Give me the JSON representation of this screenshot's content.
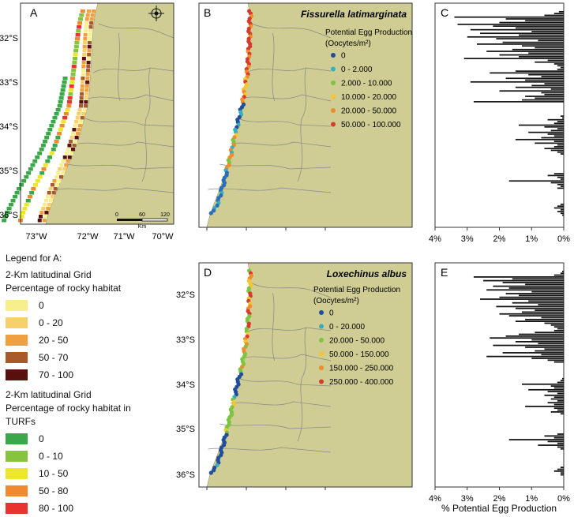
{
  "colors": {
    "land": "#cfcd93",
    "sea": "#ffffff",
    "border": "#888888",
    "bar": "#111111",
    "coast_deep": "#1f4e9a",
    "coast_blue": "#2a6db8",
    "coast_teal": "#35b0c2",
    "coast_green": "#7cc540",
    "coast_yellow": "#f5c533",
    "coast_orange": "#f08c2a",
    "coast_red": "#d63b2b"
  },
  "panelA": {
    "letter": "A",
    "lat_labels": [
      "32°S",
      "33°S",
      "34°S",
      "35°S",
      "36°S"
    ],
    "lon_labels": [
      "73°W",
      "72°W",
      "71°W",
      "70°W"
    ],
    "scale_ticks": [
      "0",
      "60",
      "120"
    ],
    "scale_unit": "Km"
  },
  "panelB": {
    "letter": "B",
    "species": "Fissurella latimarginata",
    "legend_title": "Potential Egg Production",
    "legend_unit": "(Oocytes/m²)",
    "classes": [
      "0",
      "0 - 2.000",
      "2.000 - 10.000",
      "10.000 - 20.000",
      "20.000 - 50.000",
      "50.000 - 100.000"
    ],
    "class_colors": [
      "#1f4e9a",
      "#35b0c2",
      "#7cc540",
      "#f5c533",
      "#f08c2a",
      "#d63b2b"
    ]
  },
  "panelD": {
    "letter": "D",
    "species": "Loxechinus albus",
    "legend_title": "Potential Egg Production",
    "legend_unit": "(Oocytes/m²)",
    "classes": [
      "0",
      "0 - 20.000",
      "20.000 - 50.000",
      "50.000 - 150.000",
      "150.000 - 250.000",
      "250.000 - 400.000"
    ],
    "class_colors": [
      "#1f4e9a",
      "#35b0c2",
      "#7cc540",
      "#f5c533",
      "#f08c2a",
      "#d63b2b"
    ],
    "lat_labels": [
      "32°S",
      "33°S",
      "34°S",
      "35°S",
      "36°S"
    ]
  },
  "panelC": {
    "letter": "C"
  },
  "panelE": {
    "letter": "E"
  },
  "legendA": {
    "title": "Legend for A:",
    "grid1_line1": "2-Km latitudinal Grid",
    "grid1_line2": "Percentage of rocky habitat",
    "grid1_classes": [
      "0",
      "0 - 20",
      "20 - 50",
      "50 - 70",
      "70 - 100"
    ],
    "grid1_colors": [
      "#f7ef8c",
      "#f8cf6a",
      "#f0a03e",
      "#a85a2a",
      "#5a0f0f"
    ],
    "grid2_line1": "2-Km latitudinal Grid",
    "grid2_line2": "Percentage of rocky habitat in",
    "grid2_line3": "TURFs",
    "grid2_classes": [
      "0",
      "0 - 10",
      "10 - 50",
      "50 - 80",
      "80 - 100"
    ],
    "grid2_colors": [
      "#3aa84a",
      "#86c440",
      "#ece72a",
      "#f08a2e",
      "#e8332f"
    ]
  },
  "chart_data": [
    {
      "type": "bar",
      "orientation": "horizontal",
      "panel": "C",
      "xlabel": "",
      "xticks": [
        "4%",
        "3%",
        "2%",
        "1%",
        "0%"
      ],
      "xlim": [
        0,
        4
      ],
      "x_direction": "reversed",
      "values": [
        0.15,
        0.3,
        0.6,
        3.4,
        1.8,
        1.2,
        2.0,
        3.3,
        2.2,
        1.5,
        2.9,
        1.0,
        2.6,
        1.4,
        3.0,
        2.1,
        0.8,
        1.9,
        2.7,
        1.3,
        0.9,
        1.6,
        2.4,
        1.1,
        2.0,
        1.4,
        3.1,
        0.5,
        0.9,
        0.3,
        0.2,
        0.1,
        0.2,
        1.5,
        2.3,
        1.1,
        0.7,
        1.8,
        1.2,
        2.9,
        0.6,
        1.0,
        1.5,
        0.4,
        2.0,
        0.7,
        0.6,
        1.2,
        0.9,
        1.3,
        2.8,
        0,
        0,
        0,
        0,
        0,
        0,
        0,
        0.1,
        0.05,
        0.5,
        0.2,
        0.3,
        1.4,
        0.6,
        0.2,
        0.4,
        1.1,
        0.5,
        0.3,
        0.7,
        1.5,
        0.3,
        0.9,
        0.2,
        0.3,
        0.6,
        0.4,
        0.2,
        0.1,
        0,
        0,
        0,
        0,
        0,
        0,
        0,
        0,
        0,
        0,
        0.3,
        0.5,
        0.2,
        0.1,
        1.7,
        0.4,
        0.2,
        0.1,
        0.2,
        0,
        0,
        0,
        0,
        0,
        0,
        0,
        0,
        0.1,
        0.2,
        0.3,
        0.1,
        0.2,
        0.1,
        0.05
      ]
    },
    {
      "type": "bar",
      "orientation": "horizontal",
      "panel": "E",
      "xlabel": "% Potential Egg Production",
      "xticks": [
        "4%",
        "3%",
        "2%",
        "1%",
        "0%"
      ],
      "xlim": [
        0,
        4
      ],
      "x_direction": "reversed",
      "values": [
        0.05,
        0.1,
        0.3,
        2.8,
        1.6,
        2.5,
        1.9,
        1.2,
        2.2,
        1.7,
        2.4,
        1.0,
        1.8,
        1.4,
        2.0,
        2.6,
        1.1,
        1.6,
        0.8,
        2.1,
        1.5,
        0.9,
        1.3,
        2.0,
        1.7,
        0.7,
        1.2,
        1.5,
        0.6,
        0.4,
        0.3,
        0.2,
        0.3,
        0.9,
        1.4,
        1.8,
        2.3,
        1.0,
        1.5,
        0.8,
        2.2,
        1.2,
        0.6,
        0.9,
        1.9,
        0.7,
        2.4,
        1.0,
        0.5,
        0.3,
        0,
        0,
        0,
        0,
        0,
        0,
        0,
        0,
        0.05,
        0.1,
        0.2,
        1.3,
        0.4,
        0.3,
        1.1,
        0.5,
        0.2,
        0.6,
        0.3,
        0.4,
        0.2,
        0.5,
        0.3,
        1.2,
        0.3,
        0.2,
        0.4,
        0.1,
        0,
        0,
        0,
        0,
        0,
        0,
        0,
        0,
        0,
        0,
        0.2,
        0.6,
        0.3,
        1.7,
        0.5,
        0.2,
        0.8,
        0.2,
        0.1,
        0,
        0,
        0,
        0,
        0,
        0,
        0,
        0,
        0,
        0.1,
        0.2,
        0.3,
        0.1,
        0.1
      ]
    }
  ]
}
